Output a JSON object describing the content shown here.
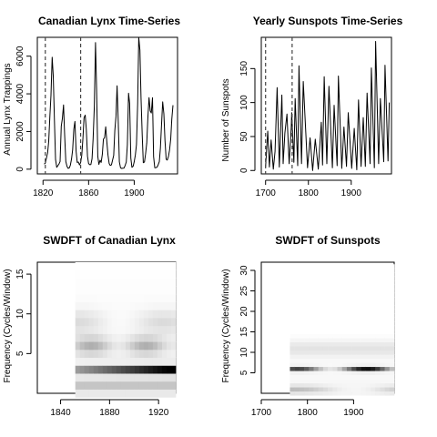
{
  "chart_data": [
    {
      "type": "line",
      "title": "Canadian Lynx Time-Series",
      "xlabel": "",
      "ylabel": "Annual Lynx Trappings",
      "xlim": [
        1815,
        1938
      ],
      "ylim": [
        -250,
        7000
      ],
      "xticks": [
        1820,
        1860,
        1900
      ],
      "yticks": [
        0,
        2000,
        4000,
        6000
      ],
      "vlines": [
        1822,
        1853
      ],
      "x": [
        1821,
        1822,
        1823,
        1824,
        1825,
        1826,
        1827,
        1828,
        1829,
        1830,
        1831,
        1832,
        1833,
        1834,
        1835,
        1836,
        1837,
        1838,
        1839,
        1840,
        1841,
        1842,
        1843,
        1844,
        1845,
        1846,
        1847,
        1848,
        1849,
        1850,
        1851,
        1852,
        1853,
        1854,
        1855,
        1856,
        1857,
        1858,
        1859,
        1860,
        1861,
        1862,
        1863,
        1864,
        1865,
        1866,
        1867,
        1868,
        1869,
        1870,
        1871,
        1872,
        1873,
        1874,
        1875,
        1876,
        1877,
        1878,
        1879,
        1880,
        1881,
        1882,
        1883,
        1884,
        1885,
        1886,
        1887,
        1888,
        1889,
        1890,
        1891,
        1892,
        1893,
        1894,
        1895,
        1896,
        1897,
        1898,
        1899,
        1900,
        1901,
        1902,
        1903,
        1904,
        1905,
        1906,
        1907,
        1908,
        1909,
        1910,
        1911,
        1912,
        1913,
        1914,
        1915,
        1916,
        1917,
        1918,
        1919,
        1920,
        1921,
        1922,
        1923,
        1924,
        1925,
        1926,
        1927,
        1928,
        1929,
        1930,
        1931,
        1932,
        1933,
        1934
      ],
      "y": [
        269,
        321,
        585,
        871,
        1475,
        2821,
        3928,
        5943,
        4950,
        2577,
        523,
        98,
        184,
        279,
        409,
        2285,
        2685,
        3409,
        1824,
        409,
        151,
        45,
        68,
        213,
        546,
        1033,
        2129,
        2536,
        957,
        361,
        377,
        225,
        360,
        731,
        1638,
        2725,
        2871,
        2119,
        684,
        299,
        236,
        245,
        552,
        1623,
        3311,
        6721,
        4254,
        687,
        255,
        473,
        358,
        784,
        1594,
        1676,
        2251,
        1426,
        756,
        299,
        201,
        229,
        469,
        736,
        2042,
        2811,
        4431,
        2511,
        389,
        73,
        39,
        49,
        59,
        188,
        377,
        1292,
        4031,
        3495,
        587,
        105,
        153,
        387,
        758,
        1307,
        3465,
        6991,
        6313,
        3794,
        1836,
        345,
        382,
        808,
        1388,
        2713,
        3800,
        3091,
        2985,
        3790,
        674,
        81,
        80,
        108,
        229,
        399,
        1132,
        2432,
        3574,
        2935,
        1537,
        529,
        485,
        662,
        1000,
        1590,
        2657,
        3396
      ]
    },
    {
      "type": "line",
      "title": "Yearly Sunspots Time-Series",
      "xlabel": "",
      "ylabel": "Number of Sunspots",
      "xlim": [
        1690,
        1994
      ],
      "ylim": [
        -5,
        196
      ],
      "xticks": [
        1700,
        1800,
        1900
      ],
      "yticks": [
        0,
        50,
        100,
        150
      ],
      "vlines": [
        1700,
        1762
      ],
      "x": [
        1700,
        1705,
        1709,
        1713,
        1718,
        1722,
        1727,
        1732,
        1738,
        1741,
        1745,
        1750,
        1755,
        1760,
        1761,
        1766,
        1769,
        1775,
        1778,
        1784,
        1788,
        1798,
        1804,
        1810,
        1816,
        1823,
        1830,
        1833,
        1837,
        1843,
        1848,
        1856,
        1860,
        1867,
        1870,
        1878,
        1883,
        1889,
        1893,
        1901,
        1907,
        1913,
        1917,
        1923,
        1928,
        1933,
        1937,
        1944,
        1947,
        1954,
        1957,
        1964,
        1968,
        1976,
        1979,
        1986,
        1989
      ],
      "y": [
        5,
        58,
        5,
        45,
        2,
        28,
        122,
        5,
        111,
        10,
        55,
        83,
        10,
        63,
        85,
        12,
        106,
        7,
        154,
        10,
        131,
        4,
        48,
        0,
        46,
        2,
        71,
        8,
        138,
        10,
        124,
        4,
        96,
        7,
        139,
        3,
        64,
        6,
        85,
        3,
        62,
        1,
        104,
        6,
        78,
        6,
        114,
        10,
        151,
        4,
        190,
        10,
        106,
        13,
        155,
        14,
        100
      ]
    },
    {
      "type": "heatmap",
      "title": "SWDFT of Canadian Lynx",
      "xlabel": "",
      "ylabel": "Frequency (Cycles/Window)",
      "xlim": [
        1821,
        1934
      ],
      "ylim": [
        0,
        16.5
      ],
      "xticks": [
        1840,
        1880,
        1920
      ],
      "yticks": [
        5,
        10,
        15
      ],
      "x_start": 1852,
      "window": 32,
      "colormap": "white-to-black",
      "max_frequency": 16
    },
    {
      "type": "heatmap",
      "title": "SWDFT of Sunspots",
      "xlabel": "",
      "ylabel": "Frequency (Cycles/Window)",
      "xlim": [
        1700,
        1988
      ],
      "ylim": [
        0,
        32
      ],
      "xticks": [
        1700,
        1800,
        1900
      ],
      "yticks": [
        5,
        10,
        15,
        20,
        25,
        30
      ],
      "x_start": 1762,
      "window": 62,
      "colormap": "white-to-black",
      "max_frequency": 31
    }
  ]
}
